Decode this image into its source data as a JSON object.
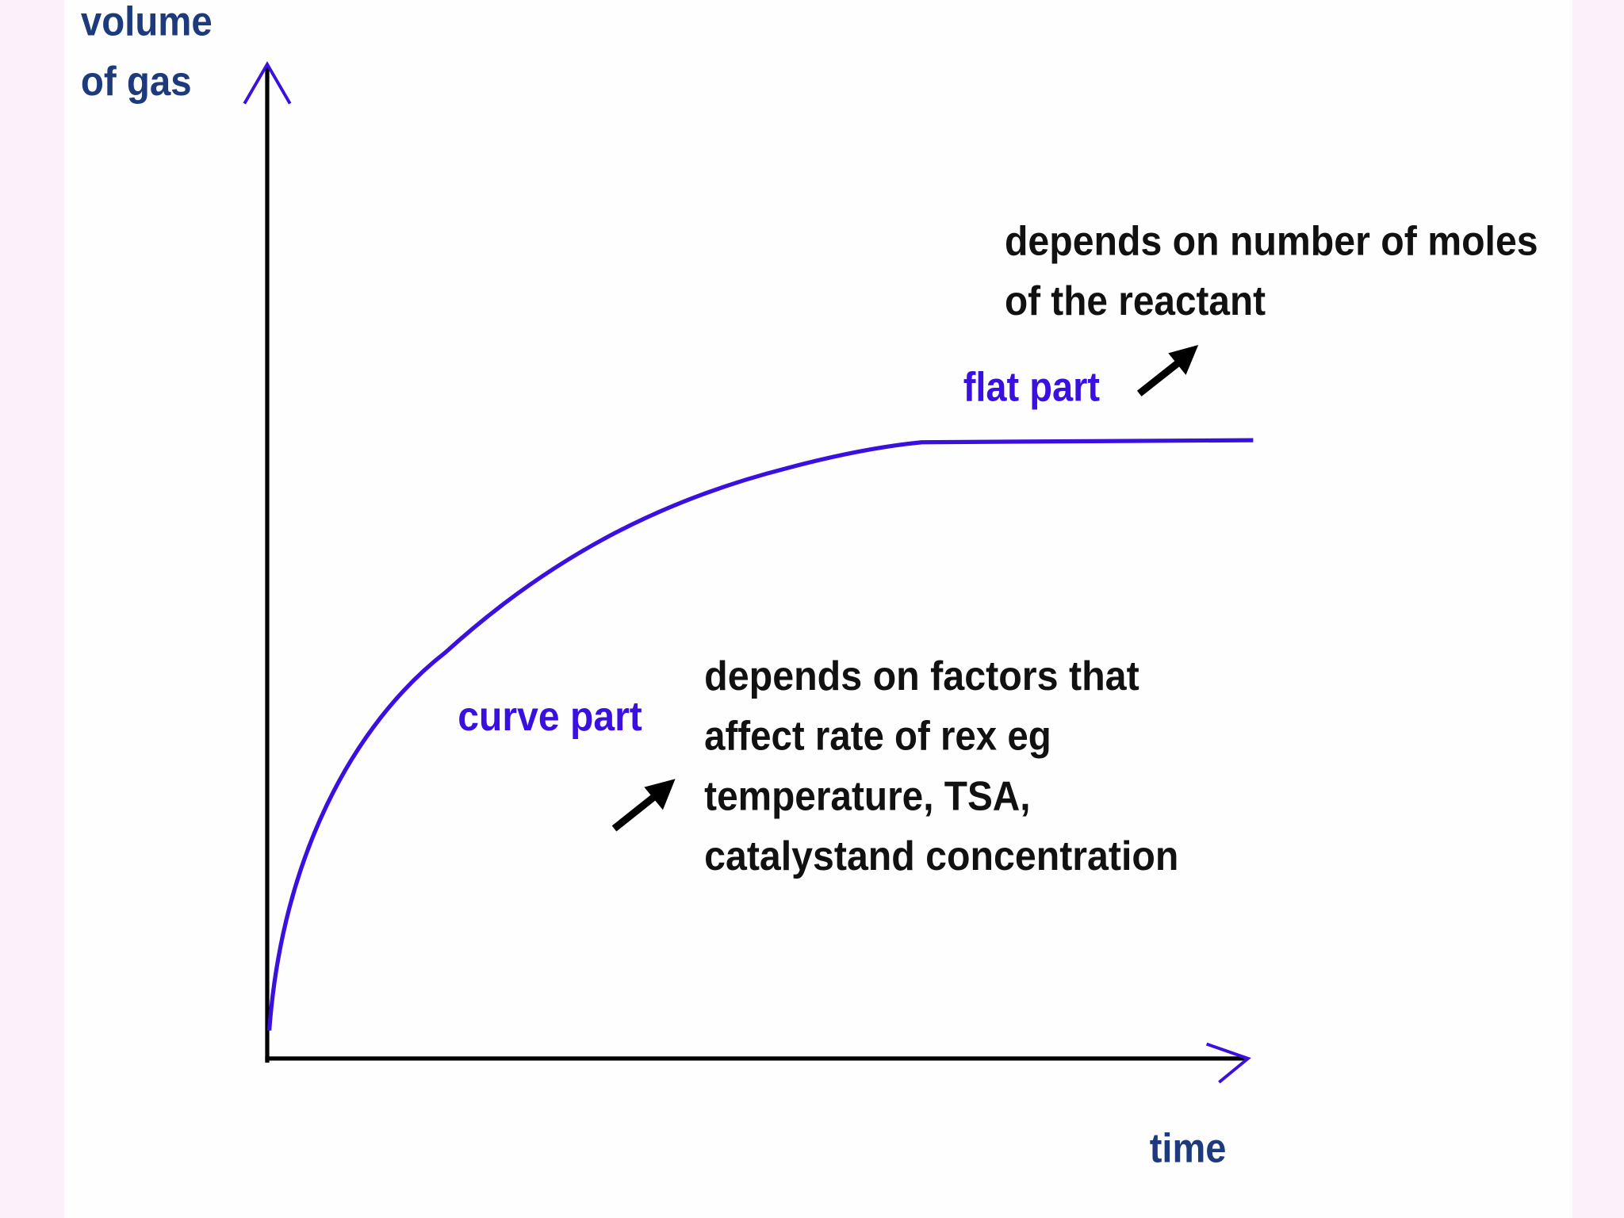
{
  "y_axis_label": [
    "volume",
    "of gas"
  ],
  "x_axis_label": "time",
  "flat_part": {
    "label": "flat part",
    "note": [
      "depends on number of moles",
      "of the reactant"
    ]
  },
  "curve_part": {
    "label": "curve part",
    "note": [
      "depends on factors that",
      "affect rate of rex eg",
      "temperature, TSA,",
      "catalystand concentration"
    ]
  }
}
